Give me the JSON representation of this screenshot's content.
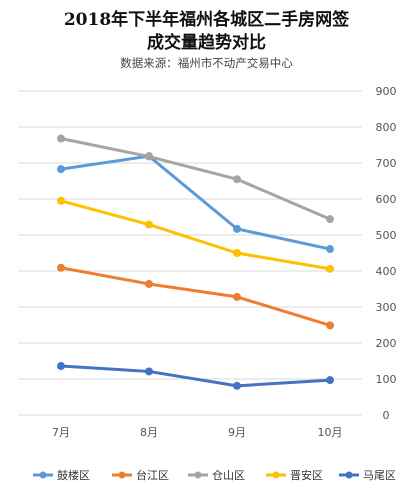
{
  "chart_data": {
    "type": "line",
    "title": "2018年下半年福州各城区二手房网签",
    "title_line2": "成交量趋势对比",
    "subtitle": "数据来源：福州市不动产交易中心",
    "categories": [
      "7月",
      "8月",
      "9月",
      "10月"
    ],
    "ylim": [
      0,
      900
    ],
    "yticks": [
      0,
      100,
      200,
      300,
      400,
      500,
      600,
      700,
      800,
      900
    ],
    "grid": true,
    "legend_position": "bottom",
    "series": [
      {
        "name": "鼓楼区",
        "color": "#5b9bd5",
        "values": [
          683,
          719,
          517,
          461
        ]
      },
      {
        "name": "台江区",
        "color": "#ed7d31",
        "values": [
          409,
          364,
          328,
          249
        ]
      },
      {
        "name": "仓山区",
        "color": "#a5a5a5",
        "values": [
          768,
          718,
          655,
          544
        ]
      },
      {
        "name": "晋安区",
        "color": "#ffc000",
        "values": [
          595,
          529,
          450,
          406
        ]
      },
      {
        "name": "马尾区",
        "color": "#4472c4",
        "values": [
          136,
          121,
          81,
          97
        ]
      }
    ]
  }
}
